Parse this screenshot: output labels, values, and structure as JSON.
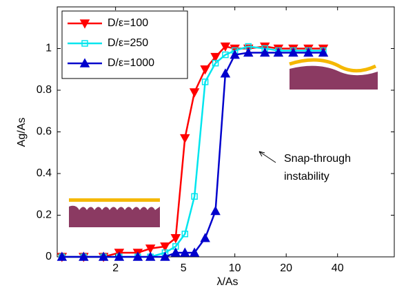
{
  "chart_data": {
    "type": "line",
    "xlabel": "λ/As",
    "ylabel": "Ag/As",
    "xscale": "log",
    "x": [
      0.97,
      1.3,
      1.7,
      2.1,
      2.7,
      3.2,
      3.9,
      4.5,
      5.1,
      5.8,
      6.7,
      7.7,
      8.8,
      10,
      12,
      15,
      18,
      22,
      27,
      33
    ],
    "series": [
      {
        "name": "D/ε=100",
        "color": "#ff0000",
        "marker": "triangle-down",
        "values": [
          0,
          0,
          0,
          0.02,
          0.02,
          0.04,
          0.05,
          0.09,
          0.57,
          0.79,
          0.9,
          0.96,
          1.01,
          1.0,
          1.0,
          1.01,
          1.0,
          1.0,
          1.0,
          1.0
        ]
      },
      {
        "name": "D/ε=250",
        "color": "#00e5ee",
        "marker": "square",
        "values": [
          0,
          0,
          0,
          0,
          0,
          0,
          0.02,
          0.05,
          0.11,
          0.29,
          0.84,
          0.93,
          0.97,
          0.99,
          1.01,
          1.0,
          0.99,
          0.99,
          0.99,
          0.99
        ]
      },
      {
        "name": "D/ε=1000",
        "color": "#0000cc",
        "marker": "triangle-up",
        "values": [
          0,
          0,
          0,
          0,
          0,
          0,
          0,
          0.02,
          0.02,
          0.02,
          0.09,
          0.22,
          0.88,
          0.97,
          0.98,
          0.98,
          0.98,
          0.98,
          0.98,
          0.98
        ]
      }
    ],
    "xlim": [
      0.91,
      86
    ],
    "xticks": [
      2,
      5,
      10,
      20,
      40
    ],
    "ylim": [
      0,
      1.2
    ],
    "yticks": [
      0,
      0.2,
      0.4,
      0.6,
      0.8,
      1
    ],
    "annotation": [
      "Snap-through",
      "instability"
    ],
    "legend": "upper left"
  }
}
